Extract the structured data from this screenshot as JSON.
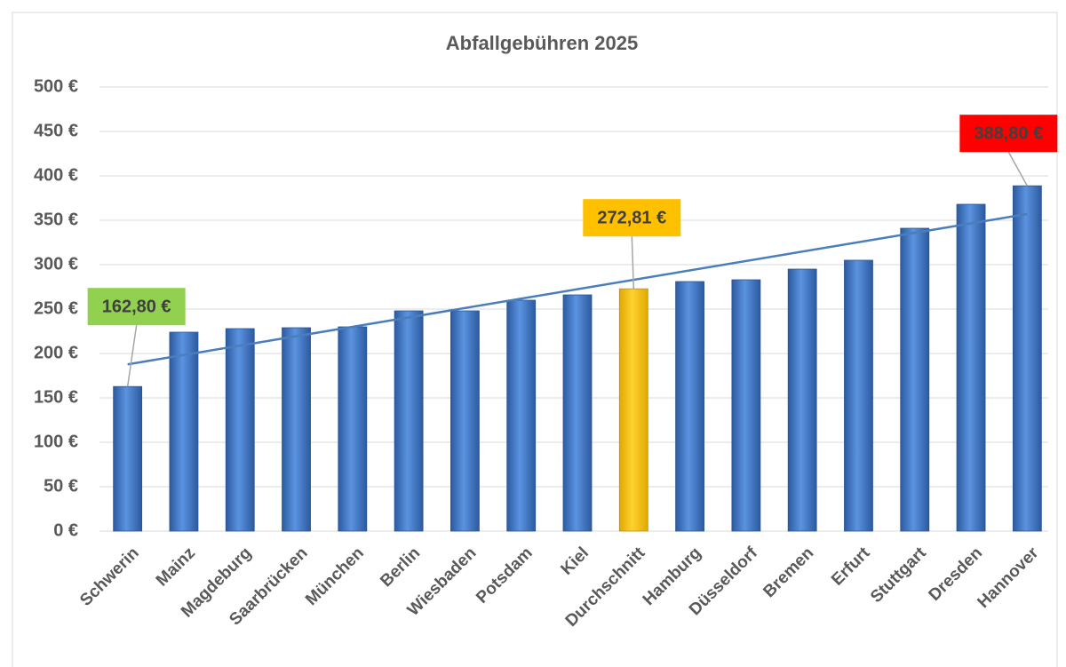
{
  "chart_data": {
    "type": "bar",
    "title": "Abfallgebühren 2025",
    "categories": [
      "Schwerin",
      "Mainz",
      "Magdeburg",
      "Saarbrücken",
      "München",
      "Berlin",
      "Wiesbaden",
      "Potsdam",
      "Kiel",
      "Durchschnitt",
      "Hamburg",
      "Düsseldorf",
      "Bremen",
      "Erfurt",
      "Stuttgart",
      "Dresden",
      "Hannover"
    ],
    "values": [
      162.8,
      224,
      228,
      229,
      230,
      248,
      248,
      260,
      266,
      272.81,
      281,
      283,
      295,
      305,
      341,
      368,
      388.8
    ],
    "colors": [
      "#4a7fd0",
      "#4a7fd0",
      "#4a7fd0",
      "#4a7fd0",
      "#4a7fd0",
      "#4a7fd0",
      "#4a7fd0",
      "#4a7fd0",
      "#4a7fd0",
      "#ffc000",
      "#4a7fd0",
      "#4a7fd0",
      "#4a7fd0",
      "#4a7fd0",
      "#4a7fd0",
      "#4a7fd0",
      "#4a7fd0"
    ],
    "value_labels": [
      "162,80 €",
      null,
      null,
      null,
      null,
      null,
      null,
      null,
      null,
      "272,81 €",
      null,
      null,
      null,
      null,
      null,
      null,
      "388,80 €"
    ],
    "value_label_colors": [
      "#92d050",
      null,
      null,
      null,
      null,
      null,
      null,
      null,
      null,
      "#ffc000",
      null,
      null,
      null,
      null,
      null,
      null,
      "#ff0000"
    ],
    "trendline": "linear",
    "trendline_color": "#4a7ebb",
    "ylim": [
      0,
      500
    ],
    "yticks": [
      {
        "value": 0,
        "label": "0 €"
      },
      {
        "value": 50,
        "label": "50 €"
      },
      {
        "value": 100,
        "label": "100 €"
      },
      {
        "value": 150,
        "label": "150 €"
      },
      {
        "value": 200,
        "label": "200 €"
      },
      {
        "value": 250,
        "label": "250 €"
      },
      {
        "value": 300,
        "label": "300 €"
      },
      {
        "value": 350,
        "label": "350 €"
      },
      {
        "value": 400,
        "label": "400 €"
      },
      {
        "value": 450,
        "label": "450 €"
      },
      {
        "value": 500,
        "label": "500 €"
      }
    ],
    "grid": true
  }
}
